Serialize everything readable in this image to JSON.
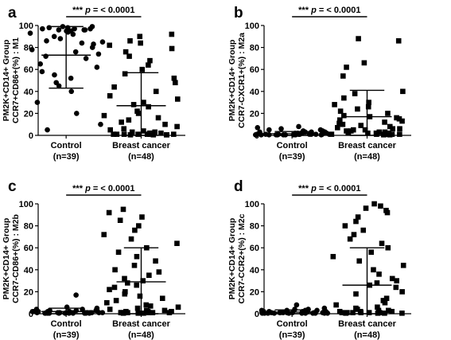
{
  "chart_data": [
    {
      "type": "scatter",
      "panel_label": "a",
      "ylabel_lines": [
        "PM2K+CD14+ Group",
        "CCR7+CD86+(%) : M1"
      ],
      "ylim": [
        0,
        100
      ],
      "yticks": [
        0,
        20,
        40,
        60,
        80,
        100
      ],
      "significance": {
        "stars": "***",
        "p": "p",
        "text": " = < 0.0001"
      },
      "categories": [
        {
          "line1": "Control",
          "line2": "(n=39)",
          "marker": "circle",
          "mean": 73,
          "sd_low": 43,
          "sd_high": 99,
          "values": [
            97,
            96,
            95,
            99,
            98,
            97,
            96,
            95,
            94,
            98,
            93,
            92,
            97,
            96,
            99,
            90,
            88,
            86,
            85,
            84,
            83,
            80,
            78,
            76,
            74,
            72,
            70,
            65,
            62,
            58,
            55,
            52,
            48,
            45,
            40,
            30,
            20,
            10,
            5
          ]
        },
        {
          "line1": "Breast cancer",
          "line2": "(n=48)",
          "marker": "square",
          "mean": 27,
          "sd_low": 0,
          "sd_high": 57,
          "values": [
            92,
            90,
            86,
            84,
            82,
            79,
            76,
            72,
            68,
            64,
            60,
            56,
            52,
            48,
            44,
            40,
            36,
            33,
            30,
            28,
            26,
            22,
            20,
            18,
            16,
            14,
            12,
            10,
            8,
            6,
            5,
            4,
            3,
            3,
            2,
            2,
            2,
            1,
            1,
            1,
            1,
            1,
            1,
            1,
            0.5,
            0.5,
            0.5,
            0.5
          ]
        }
      ]
    },
    {
      "type": "scatter",
      "panel_label": "b",
      "ylabel_lines": [
        "PM2K+CD14+ Group",
        "CCR7-CXCR1+(%) : M2a"
      ],
      "ylim": [
        0,
        100
      ],
      "yticks": [
        0,
        20,
        40,
        60,
        80,
        100
      ],
      "significance": {
        "stars": "***",
        "p": "p",
        "text": " = < 0.0001"
      },
      "categories": [
        {
          "line1": "Control",
          "line2": "(n=39)",
          "marker": "circle",
          "mean": 1.5,
          "sd_low": 0,
          "sd_high": 3.5,
          "values": [
            8,
            7,
            6,
            5,
            5,
            4,
            4,
            3,
            3,
            3,
            3,
            2,
            2,
            2,
            2,
            2,
            2,
            1,
            1,
            1,
            1,
            1,
            1,
            1,
            1,
            1,
            1,
            1,
            0.5,
            0.5,
            0.5,
            0.5,
            0.5,
            0.5,
            0.5,
            0.5,
            0.5,
            0.5,
            0.5
          ]
        },
        {
          "line1": "Breast cancer",
          "line2": "(n=48)",
          "marker": "square",
          "mean": 17,
          "sd_low": 0,
          "sd_high": 41,
          "values": [
            88,
            86,
            66,
            62,
            54,
            40,
            38,
            34,
            30,
            28,
            26,
            24,
            22,
            20,
            18,
            17,
            16,
            15,
            14,
            13,
            12,
            11,
            10,
            9,
            8,
            7,
            6,
            6,
            5,
            5,
            4,
            4,
            3,
            3,
            3,
            2,
            2,
            2,
            2,
            1,
            1,
            1,
            1,
            1,
            1,
            1,
            0.5,
            0.5
          ]
        }
      ]
    },
    {
      "type": "scatter",
      "panel_label": "c",
      "ylabel_lines": [
        "PM2K+CD14+ Group",
        "CCR7-CD86+(%) : M2b"
      ],
      "ylim": [
        0,
        100
      ],
      "yticks": [
        0,
        20,
        40,
        60,
        80,
        100
      ],
      "significance": {
        "stars": "***",
        "p": "p",
        "text": " = < 0.0001"
      },
      "categories": [
        {
          "line1": "Control",
          "line2": "(n=39)",
          "marker": "circle",
          "mean": 2,
          "sd_low": 0,
          "sd_high": 5,
          "values": [
            17,
            6,
            5,
            4,
            4,
            3,
            3,
            3,
            3,
            2,
            2,
            2,
            2,
            2,
            2,
            2,
            1,
            1,
            1,
            1,
            1,
            1,
            1,
            1,
            1,
            1,
            1,
            1,
            0.5,
            0.5,
            0.5,
            0.5,
            0.5,
            0.5,
            0.5,
            0.5,
            0.5,
            0.5,
            0.5
          ]
        },
        {
          "line1": "Breast cancer",
          "line2": "(n=48)",
          "marker": "square",
          "mean": 29,
          "sd_low": 0,
          "sd_high": 60,
          "values": [
            95,
            92,
            88,
            85,
            80,
            76,
            72,
            68,
            64,
            60,
            56,
            52,
            48,
            44,
            40,
            38,
            35,
            32,
            30,
            28,
            26,
            24,
            22,
            20,
            18,
            16,
            14,
            12,
            10,
            8,
            7,
            6,
            5,
            4,
            3,
            3,
            2,
            2,
            2,
            1,
            1,
            1,
            1,
            1,
            1,
            0.5,
            0.5,
            0.5
          ]
        }
      ]
    },
    {
      "type": "scatter",
      "panel_label": "d",
      "ylabel_lines": [
        "PM2K+CD14+ Group",
        "CCR7-CCR2+(%) : M2c"
      ],
      "ylim": [
        0,
        100
      ],
      "yticks": [
        0,
        20,
        40,
        60,
        80,
        100
      ],
      "significance": {
        "stars": "***",
        "p": "p",
        "text": " = < 0.0001"
      },
      "categories": [
        {
          "line1": "Control",
          "line2": "(n=39)",
          "marker": "circle",
          "mean": 1.5,
          "sd_low": 0,
          "sd_high": 3.5,
          "values": [
            8,
            5,
            4,
            4,
            3,
            3,
            3,
            3,
            2,
            2,
            2,
            2,
            2,
            2,
            2,
            1,
            1,
            1,
            1,
            1,
            1,
            1,
            1,
            1,
            1,
            1,
            1,
            0.5,
            0.5,
            0.5,
            0.5,
            0.5,
            0.5,
            0.5,
            0.5,
            0.5,
            0.5,
            0.5,
            0.5
          ]
        },
        {
          "line1": "Breast cancer",
          "line2": "(n=48)",
          "marker": "square",
          "mean": 26,
          "sd_low": 0,
          "sd_high": 60,
          "values": [
            100,
            98,
            96,
            94,
            92,
            88,
            84,
            80,
            76,
            72,
            68,
            64,
            60,
            56,
            52,
            48,
            44,
            40,
            36,
            32,
            30,
            28,
            26,
            24,
            20,
            18,
            14,
            12,
            10,
            8,
            6,
            5,
            4,
            3,
            3,
            2,
            2,
            2,
            1,
            1,
            1,
            1,
            1,
            1,
            0.5,
            0.5,
            0.5,
            0.5
          ]
        }
      ]
    }
  ]
}
